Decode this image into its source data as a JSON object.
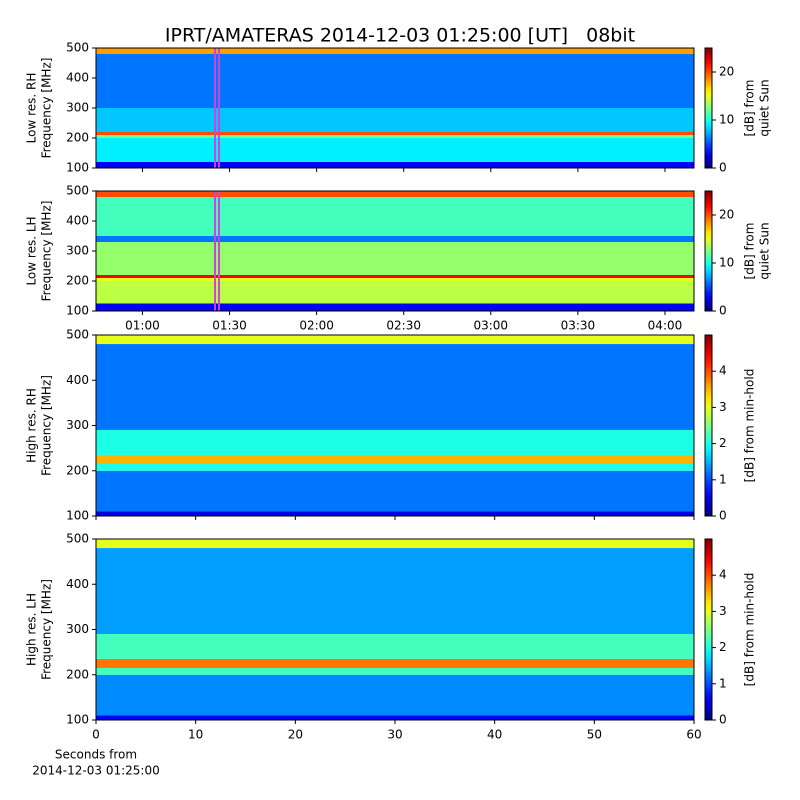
{
  "chart_data": [
    {
      "type": "spectrogram",
      "title": "IPRT/AMATERAS 2014-12-03 01:25:00 [UT]   08bit",
      "ylabel": [
        "Low res. RH",
        "Frequency [MHz]"
      ],
      "ylim": [
        100,
        500
      ],
      "yticks": [
        100,
        200,
        300,
        400,
        500
      ],
      "xlim": [
        "00:44",
        "04:10"
      ],
      "marker_x": "01:25",
      "marker_color": "#cc44dd",
      "profile": {
        "freqs": [
          100,
          120,
          200,
          210,
          220,
          300,
          480,
          500
        ],
        "levels": [
          3,
          9,
          12,
          20,
          8,
          6,
          18
        ]
      },
      "colorbar": {
        "label": [
          "[dB] from",
          "quiet Sun"
        ],
        "lim": [
          0,
          25
        ],
        "ticks": [
          0,
          10,
          20
        ]
      }
    },
    {
      "type": "spectrogram",
      "ylabel": [
        "Low res. LH",
        "Frequency [MHz]"
      ],
      "ylim": [
        100,
        500
      ],
      "yticks": [
        100,
        200,
        300,
        400,
        500
      ],
      "xlim": [
        "00:44",
        "04:10"
      ],
      "xticks": [
        "01:00",
        "01:30",
        "02:00",
        "02:30",
        "03:00",
        "03:30",
        "04:00"
      ],
      "marker_x": "01:25",
      "marker_color": "#cc44dd",
      "profile": {
        "freqs": [
          100,
          125,
          200,
          210,
          220,
          330,
          350,
          480,
          500
        ],
        "levels": [
          3,
          14,
          15,
          22,
          13,
          6,
          11,
          20
        ]
      },
      "colorbar": {
        "label": [
          "[dB] from",
          "quiet Sun"
        ],
        "lim": [
          0,
          25
        ],
        "ticks": [
          0,
          10,
          20
        ]
      }
    },
    {
      "type": "spectrogram",
      "ylabel": [
        "High res. RH",
        "Frequency [MHz]"
      ],
      "ylim": [
        100,
        500
      ],
      "yticks": [
        100,
        200,
        300,
        400,
        500
      ],
      "xlim": [
        0,
        60
      ],
      "profile": {
        "freqs": [
          100,
          110,
          200,
          215,
          235,
          290,
          480,
          500
        ],
        "levels": [
          0.5,
          1.2,
          2,
          3.5,
          2,
          1.2,
          3
        ]
      },
      "colorbar": {
        "label": [
          "[dB] from min-hold"
        ],
        "lim": [
          0,
          5
        ],
        "ticks": [
          0,
          1,
          2,
          3,
          4
        ]
      }
    },
    {
      "type": "spectrogram",
      "ylabel": [
        "High res. LH",
        "Frequency [MHz]"
      ],
      "ylim": [
        100,
        500
      ],
      "yticks": [
        100,
        200,
        300,
        400,
        500
      ],
      "xlim": [
        0,
        60
      ],
      "xticks": [
        0,
        10,
        20,
        30,
        40,
        50,
        60
      ],
      "xlabel": [
        "Seconds from",
        "2014-12-03 01:25:00"
      ],
      "profile": {
        "freqs": [
          100,
          110,
          200,
          215,
          235,
          290,
          480,
          500
        ],
        "levels": [
          0.6,
          1.3,
          2.2,
          3.8,
          2.2,
          1.4,
          3
        ]
      },
      "colorbar": {
        "label": [
          "[dB] from min-hold"
        ],
        "lim": [
          0,
          5
        ],
        "ticks": [
          0,
          1,
          2,
          3,
          4
        ]
      }
    }
  ]
}
